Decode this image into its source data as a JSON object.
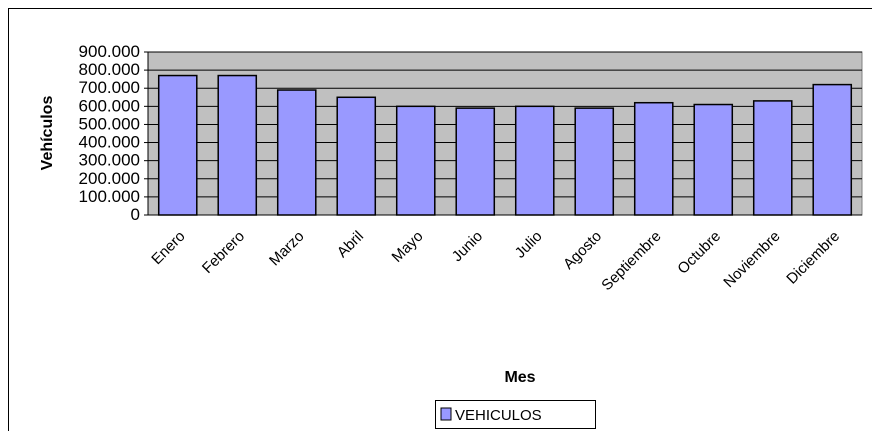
{
  "chart_data": {
    "type": "bar",
    "x_label": "Mes",
    "y_label": "Vehículos",
    "categories": [
      "Enero",
      "Febrero",
      "Marzo",
      "Abril",
      "Mayo",
      "Junio",
      "Julio",
      "Agosto",
      "Septiembre",
      "Octubre",
      "Noviembre",
      "Diciembre"
    ],
    "series": [
      {
        "name": "VEHICULOS",
        "color": "#9999ff",
        "values": [
          770000,
          770000,
          690000,
          650000,
          600000,
          590000,
          600000,
          590000,
          620000,
          610000,
          630000,
          720000
        ]
      }
    ],
    "ylim": [
      0,
      900000
    ],
    "yticks": [
      0,
      {
        "value": 100000,
        "label": "100.000"
      },
      {
        "value": 200000,
        "label": "200.000"
      },
      {
        "value": 300000,
        "label": "300.000"
      },
      {
        "value": 400000,
        "label": "400.000"
      },
      {
        "value": 500000,
        "label": "500.000"
      },
      {
        "value": 600000,
        "label": "600.000"
      },
      {
        "value": 700000,
        "label": "700.000"
      },
      {
        "value": 800000,
        "label": "800.000"
      },
      {
        "value": 900000,
        "label": "900.000"
      }
    ],
    "grid": true,
    "legend": "bottom"
  }
}
